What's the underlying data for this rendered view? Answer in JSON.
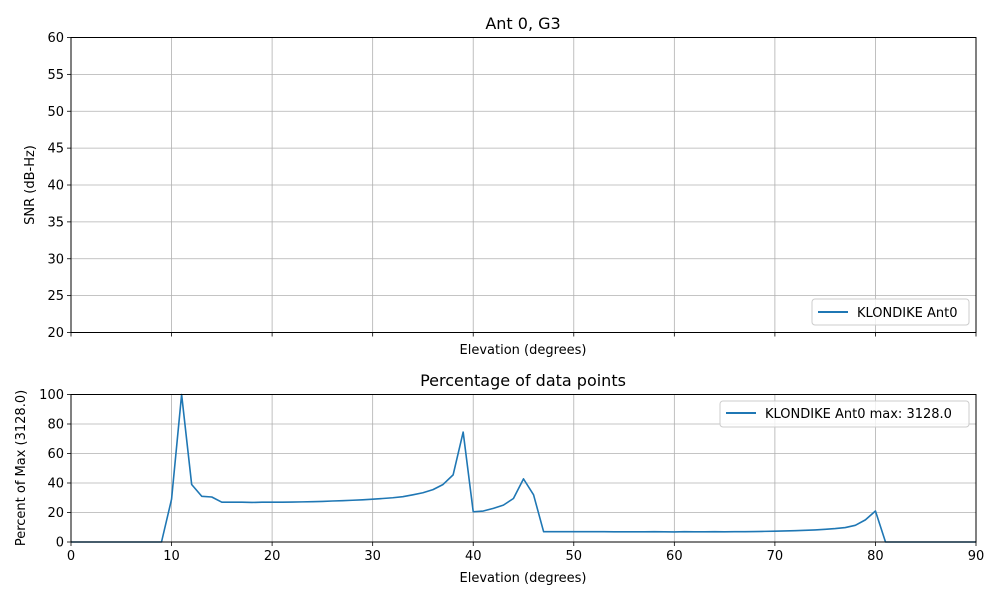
{
  "chart_data": [
    {
      "type": "line",
      "title": "Ant 0, G3",
      "xlabel": "Elevation (degrees)",
      "ylabel": "SNR (dB-Hz)",
      "xlim": [
        0,
        90
      ],
      "ylim": [
        20,
        60
      ],
      "x_ticks": [
        0,
        10,
        20,
        30,
        40,
        50,
        60,
        70,
        80,
        90
      ],
      "x_tick_labels_visible": false,
      "y_ticks": [
        20,
        25,
        30,
        35,
        40,
        45,
        50,
        55,
        60
      ],
      "grid": true,
      "legend_position": "lower-right",
      "series": [
        {
          "name": "KLONDIKE Ant0",
          "color": "#1f77b4",
          "x": [],
          "y": []
        }
      ]
    },
    {
      "type": "line",
      "title": "Percentage of data points",
      "xlabel": "Elevation (degrees)",
      "ylabel": "Percent of Max (3128.0)",
      "xlim": [
        0,
        90
      ],
      "ylim": [
        0,
        100
      ],
      "x_ticks": [
        0,
        10,
        20,
        30,
        40,
        50,
        60,
        70,
        80,
        90
      ],
      "x_tick_labels_visible": true,
      "y_ticks": [
        0,
        20,
        40,
        60,
        80,
        100
      ],
      "grid": true,
      "legend_position": "upper-right",
      "series": [
        {
          "name": "KLONDIKE Ant0 max: 3128.0",
          "color": "#1f77b4",
          "x": [
            0,
            1,
            2,
            3,
            4,
            5,
            6,
            7,
            8,
            9,
            10,
            11,
            12,
            13,
            14,
            15,
            16,
            17,
            18,
            19,
            20,
            21,
            22,
            23,
            24,
            25,
            26,
            27,
            28,
            29,
            30,
            31,
            32,
            33,
            34,
            35,
            36,
            37,
            38,
            39,
            40,
            41,
            42,
            43,
            44,
            45,
            46,
            47,
            48,
            49,
            50,
            51,
            52,
            53,
            54,
            55,
            56,
            57,
            58,
            59,
            60,
            61,
            62,
            63,
            64,
            65,
            66,
            67,
            68,
            69,
            70,
            71,
            72,
            73,
            74,
            75,
            76,
            77,
            78,
            79,
            80,
            81,
            82,
            83,
            84,
            85,
            86,
            87,
            88,
            89,
            90
          ],
          "y": [
            0,
            0,
            0,
            0,
            0,
            0,
            0,
            0,
            0,
            0,
            29,
            100,
            39,
            31,
            30.5,
            27,
            27,
            27,
            26.8,
            27,
            27,
            27,
            27.1,
            27.2,
            27.3,
            27.5,
            27.8,
            28,
            28.3,
            28.6,
            29,
            29.5,
            30,
            30.7,
            32,
            33.4,
            35.5,
            39,
            45.5,
            74.5,
            20.5,
            21,
            22.8,
            25,
            29.5,
            42.8,
            32,
            7,
            7,
            7,
            7,
            7,
            7,
            7,
            6.9,
            6.9,
            6.9,
            6.9,
            7,
            6.9,
            6.8,
            7,
            6.9,
            6.9,
            7,
            6.9,
            7,
            7,
            7.1,
            7.2,
            7.3,
            7.5,
            7.7,
            7.9,
            8.2,
            8.6,
            9.1,
            9.8,
            11.3,
            15,
            21,
            0,
            0,
            0,
            0,
            0,
            0,
            0,
            0,
            0,
            0
          ]
        }
      ]
    }
  ]
}
